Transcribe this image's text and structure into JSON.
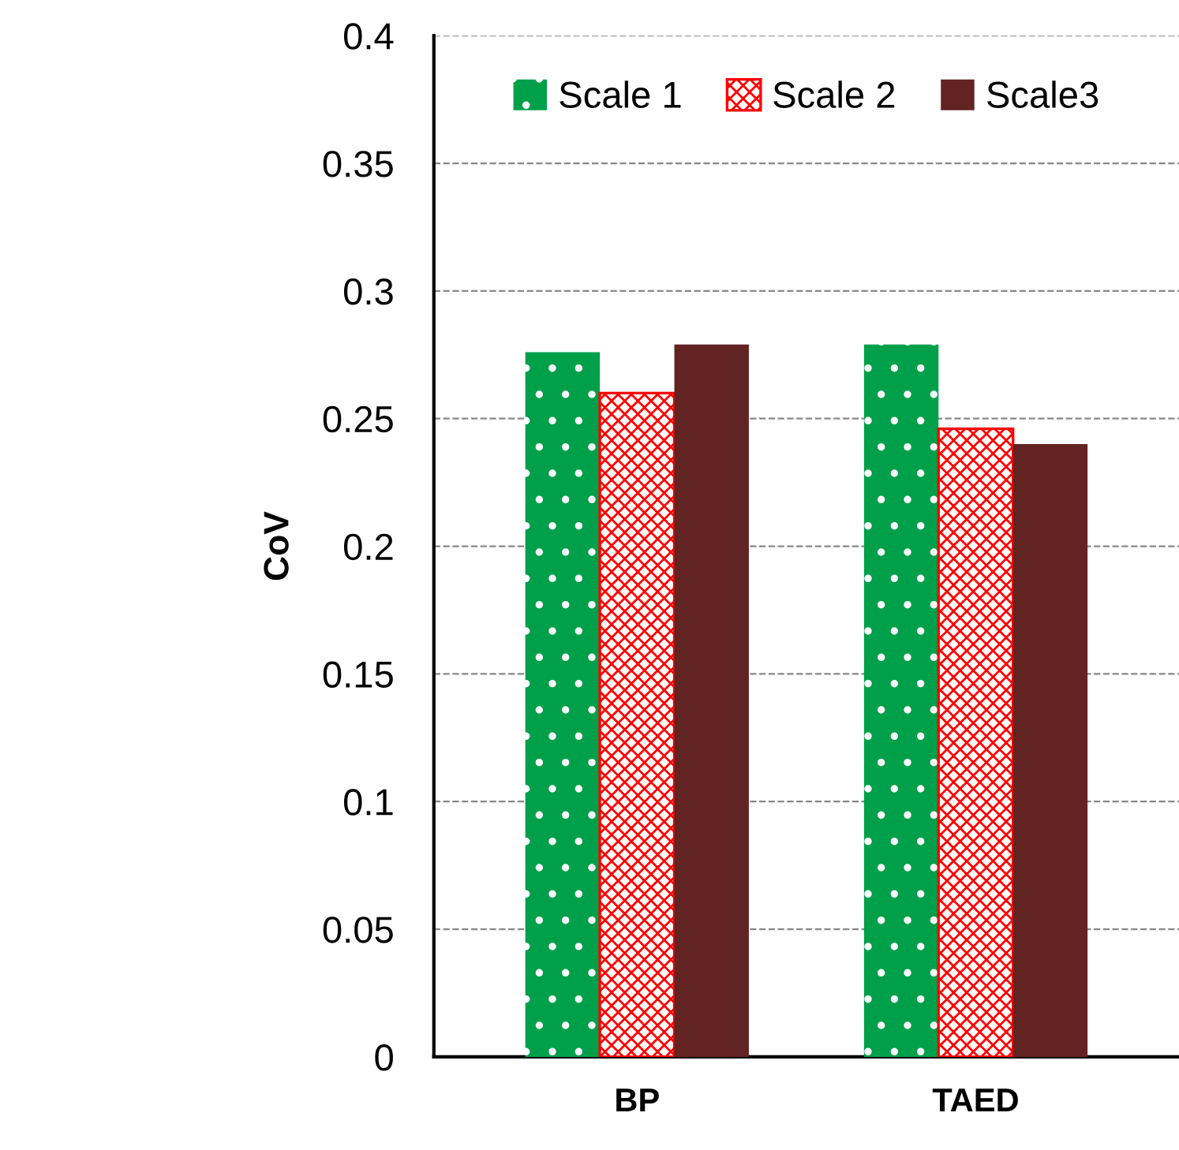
{
  "chart_data": {
    "type": "bar",
    "ylabel": "CoV",
    "categories": [
      "BP",
      "TAED"
    ],
    "series": [
      {
        "name": "Scale 1",
        "color": "#00a04a",
        "values": [
          0.276,
          0.279
        ]
      },
      {
        "name": "Scale 2",
        "color": "#ff0000",
        "values": [
          0.26,
          0.246
        ]
      },
      {
        "name": "Scale3",
        "color": "#622323",
        "values": [
          0.279,
          0.24
        ]
      }
    ],
    "ylim": [
      0,
      0.4
    ],
    "yticks": [
      0,
      0.05,
      0.1,
      0.15,
      0.2,
      0.25,
      0.3,
      0.35,
      0.4
    ],
    "grid": "y",
    "legend": "top"
  }
}
